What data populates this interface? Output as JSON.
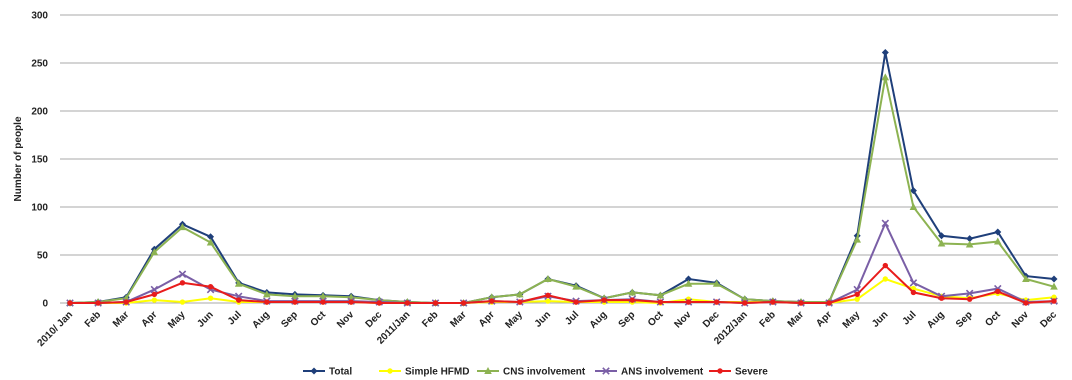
{
  "chart_data": {
    "type": "line",
    "ylabel": "Number of people",
    "ylim": [
      0,
      300
    ],
    "yticks": [
      0,
      50,
      100,
      150,
      200,
      250,
      300
    ],
    "grid": "horizontal",
    "legend_position": "bottom",
    "categories": [
      "2010/ Jan",
      "Feb",
      "Mar",
      "Apr",
      "May",
      "Jun",
      "Jul",
      "Aug",
      "Sep",
      "Oct",
      "Nov",
      "Dec",
      "2011/Jan",
      "Feb",
      "Mar",
      "Apr",
      "May",
      "Jun",
      "Jul",
      "Aug",
      "Sep",
      "Oct",
      "Nov",
      "Dec",
      "2012/Jan",
      "Feb",
      "Mar",
      "Apr",
      "May",
      "Jun",
      "Jul",
      "Aug",
      "Sep",
      "Oct",
      "Nov",
      "Dec"
    ],
    "series": [
      {
        "name": "Total",
        "color": "#1f3f7a",
        "marker": "diamond",
        "values": [
          0,
          1,
          6,
          56,
          82,
          69,
          21,
          11,
          9,
          8,
          7,
          3,
          1,
          0,
          0,
          6,
          9,
          25,
          18,
          5,
          11,
          8,
          25,
          21,
          4,
          2,
          1,
          1,
          70,
          261,
          117,
          70,
          67,
          74,
          28,
          25
        ]
      },
      {
        "name": "Simple HFMD",
        "color": "#ffff00",
        "marker": "circle",
        "values": [
          0,
          0,
          0,
          3,
          1,
          5,
          1,
          1,
          1,
          1,
          1,
          0,
          0,
          0,
          0,
          1,
          1,
          2,
          1,
          1,
          1,
          0,
          4,
          1,
          1,
          1,
          0,
          0,
          4,
          25,
          15,
          7,
          5,
          10,
          3,
          6
        ]
      },
      {
        "name": "CNS involvement",
        "color": "#8db352",
        "marker": "triangle",
        "values": [
          0,
          1,
          5,
          53,
          79,
          63,
          20,
          9,
          7,
          7,
          6,
          3,
          1,
          0,
          0,
          6,
          9,
          25,
          17,
          5,
          11,
          8,
          20,
          20,
          4,
          2,
          1,
          1,
          66,
          235,
          100,
          62,
          61,
          64,
          25,
          17
        ]
      },
      {
        "name": "ANS involvement",
        "color": "#7a5fa6",
        "marker": "x",
        "values": [
          0,
          0,
          1,
          14,
          30,
          14,
          7,
          2,
          2,
          2,
          2,
          1,
          0,
          0,
          0,
          2,
          1,
          7,
          2,
          3,
          4,
          1,
          1,
          1,
          0,
          1,
          0,
          0,
          14,
          83,
          21,
          7,
          10,
          15,
          1,
          2
        ]
      },
      {
        "name": "Severe",
        "color": "#e81c1c",
        "marker": "circle",
        "values": [
          0,
          0,
          1,
          9,
          21,
          17,
          3,
          1,
          1,
          1,
          1,
          0,
          0,
          0,
          0,
          2,
          1,
          8,
          1,
          3,
          3,
          1,
          1,
          1,
          0,
          1,
          0,
          0,
          9,
          39,
          11,
          5,
          4,
          12,
          0,
          2
        ]
      }
    ]
  }
}
